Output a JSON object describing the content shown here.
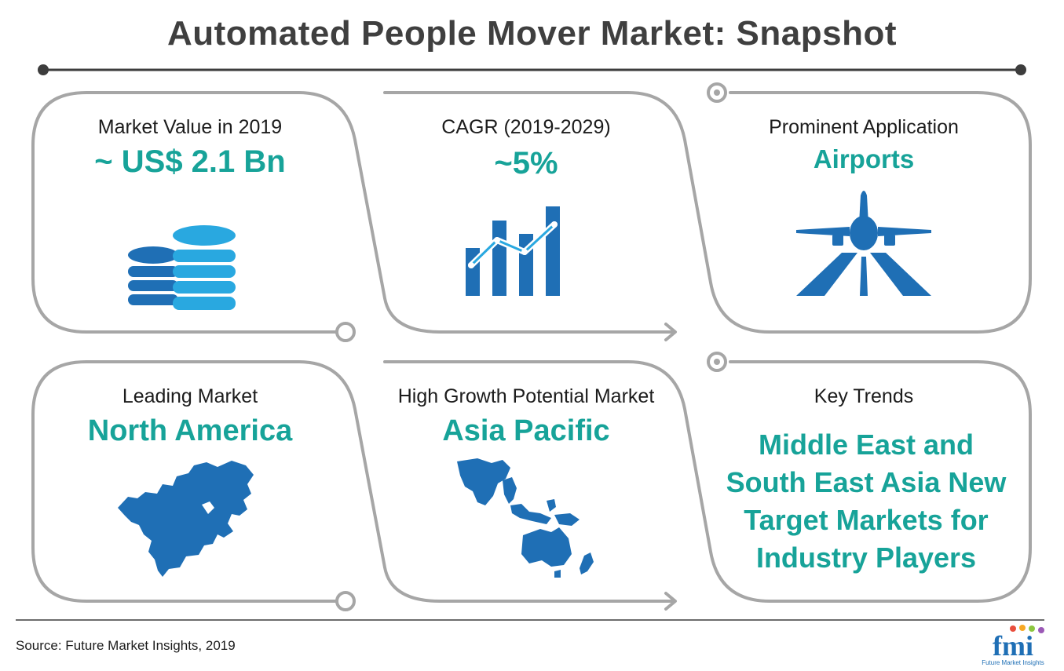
{
  "title": "Automated People Mover Market: Snapshot",
  "panels": {
    "market_value": {
      "label": "Market Value in 2019",
      "value": "~ US$ 2.1 Bn",
      "icon": "coins-stack-icon"
    },
    "cagr": {
      "label": "CAGR (2019-2029)",
      "value": "~5%",
      "icon": "bar-growth-chart-icon"
    },
    "application": {
      "label": "Prominent Application",
      "value": "Airports",
      "icon": "airplane-runway-icon"
    },
    "leading_market": {
      "label": "Leading Market",
      "value": "North America",
      "icon": "north-america-map-icon"
    },
    "growth_market": {
      "label": "High Growth Potential Market",
      "value": "Asia Pacific",
      "icon": "asia-pacific-map-icon"
    },
    "key_trends": {
      "label": "Key Trends",
      "lines": [
        "Middle East and",
        "South East Asia New",
        "Target Markets for",
        "Industry Players"
      ]
    }
  },
  "source": "Source: Future Market Insights, 2019",
  "logo": {
    "text": "fmi",
    "tagline": "Future Market Insights"
  },
  "colors": {
    "accent": "#17a399",
    "icon_dark": "#1f6fb5",
    "icon_light": "#29a8e0",
    "frame": "#a6a6a6",
    "title": "#3f3f3f"
  }
}
